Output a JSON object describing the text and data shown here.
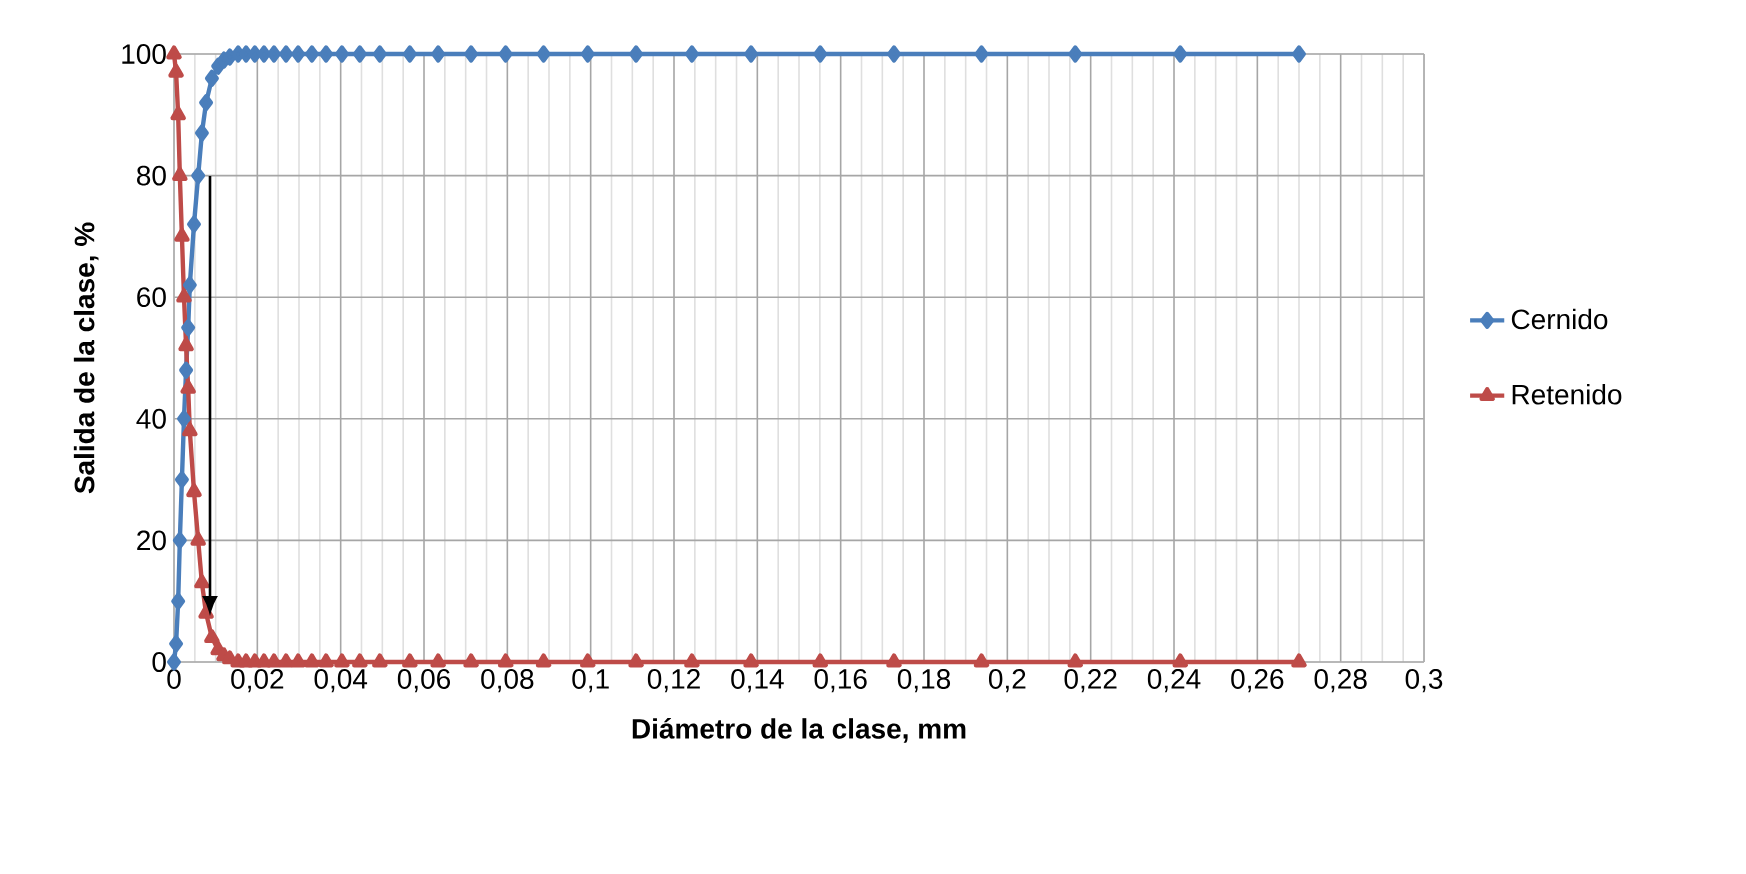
{
  "chart_data": {
    "type": "line",
    "xlabel": "Diámetro de la clase, mm",
    "ylabel": "Salida de la clase, %",
    "x": [
      0,
      0.0005,
      0.001,
      0.0014,
      0.0019,
      0.0024,
      0.0029,
      0.0034,
      0.0038,
      0.0048,
      0.0058,
      0.0067,
      0.0077,
      0.0091,
      0.0106,
      0.012,
      0.0134,
      0.0154,
      0.0173,
      0.0194,
      0.0216,
      0.024,
      0.0269,
      0.0298,
      0.0331,
      0.0365,
      0.0403,
      0.0446,
      0.0494,
      0.0566,
      0.0634,
      0.0713,
      0.0796,
      0.0887,
      0.0993,
      0.1109,
      0.1243,
      0.1385,
      0.1551,
      0.1728,
      0.1938,
      0.2163,
      0.2415,
      0.27
    ],
    "series": [
      {
        "name": "Cernido",
        "color": "#4a7ebb",
        "marker": "diamond",
        "values": [
          0,
          3,
          10,
          20,
          30,
          40,
          48,
          55,
          62,
          72,
          80,
          87,
          92,
          96,
          98,
          99,
          99.5,
          100,
          100,
          100,
          100,
          100,
          100,
          100,
          100,
          100,
          100,
          100,
          100,
          100,
          100,
          100,
          100,
          100,
          100,
          100,
          100,
          100,
          100,
          100,
          100,
          100,
          100,
          100
        ]
      },
      {
        "name": "Retenido",
        "color": "#be4b48",
        "marker": "triangle",
        "values": [
          100,
          97,
          90,
          80,
          70,
          60,
          52,
          45,
          38,
          28,
          20,
          13,
          8,
          4,
          2,
          1,
          0.5,
          0,
          0,
          0,
          0,
          0,
          0,
          0,
          0,
          0,
          0,
          0,
          0,
          0,
          0,
          0,
          0,
          0,
          0,
          0,
          0,
          0,
          0,
          0,
          0,
          0,
          0,
          0
        ]
      }
    ],
    "xlim": [
      0,
      0.3
    ],
    "xticks": [
      0,
      {
        "value": 0.02,
        "label": "0,02"
      },
      {
        "value": 0.04,
        "label": "0,04"
      },
      {
        "value": 0.06,
        "label": "0,06"
      },
      {
        "value": 0.08,
        "label": "0,08"
      },
      {
        "value": 0.1,
        "label": "0,1"
      },
      {
        "value": 0.12,
        "label": "0,12"
      },
      {
        "value": 0.14,
        "label": "0,14"
      },
      {
        "value": 0.16,
        "label": "0,16"
      },
      {
        "value": 0.18,
        "label": "0,18"
      },
      {
        "value": 0.2,
        "label": "0,2"
      },
      {
        "value": 0.22,
        "label": "0,22"
      },
      {
        "value": 0.24,
        "label": "0,24"
      },
      {
        "value": 0.26,
        "label": "0,26"
      },
      {
        "value": 0.28,
        "label": "0,28"
      },
      {
        "value": 0.3,
        "label": "0,3"
      }
    ],
    "ylim": [
      0,
      100
    ],
    "yticks": [
      0,
      20,
      40,
      60,
      80,
      100
    ],
    "grid": true,
    "legend": "right",
    "line_style": "solid"
  }
}
